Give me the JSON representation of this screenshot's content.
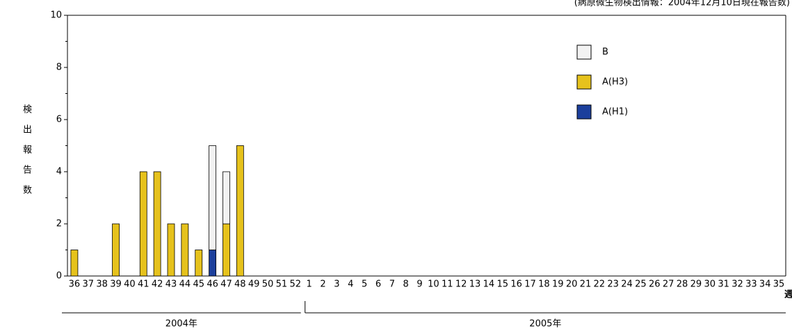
{
  "chart_data": {
    "type": "stacked_bar",
    "title": "(病原微生物検出情報：2004年12月10日現在報告数)",
    "y_label": "検出報告数",
    "x_label": "週",
    "x_groups": [
      "2004年",
      "2005年"
    ],
    "categories": [
      "36",
      "37",
      "38",
      "39",
      "40",
      "41",
      "42",
      "43",
      "44",
      "45",
      "46",
      "47",
      "48",
      "49",
      "50",
      "51",
      "52",
      "1",
      "2",
      "3",
      "4",
      "5",
      "6",
      "7",
      "8",
      "9",
      "10",
      "11",
      "12",
      "13",
      "14",
      "15",
      "16",
      "17",
      "18",
      "19",
      "20",
      "21",
      "22",
      "23",
      "24",
      "25",
      "26",
      "27",
      "28",
      "29",
      "30",
      "31",
      "32",
      "33",
      "34",
      "35"
    ],
    "series": [
      {
        "name": "A(H1)",
        "color": "#1c3f9c",
        "values": [
          0,
          0,
          0,
          0,
          0,
          0,
          0,
          0,
          0,
          0,
          1,
          0,
          0,
          0,
          0,
          0,
          0,
          0,
          0,
          0,
          0,
          0,
          0,
          0,
          0,
          0,
          0,
          0,
          0,
          0,
          0,
          0,
          0,
          0,
          0,
          0,
          0,
          0,
          0,
          0,
          0,
          0,
          0,
          0,
          0,
          0,
          0,
          0,
          0,
          0,
          0,
          0
        ]
      },
      {
        "name": "A(H3)",
        "color": "#e6c21c",
        "values": [
          1,
          0,
          0,
          2,
          0,
          4,
          4,
          2,
          2,
          1,
          0,
          2,
          5,
          0,
          0,
          0,
          0,
          0,
          0,
          0,
          0,
          0,
          0,
          0,
          0,
          0,
          0,
          0,
          0,
          0,
          0,
          0,
          0,
          0,
          0,
          0,
          0,
          0,
          0,
          0,
          0,
          0,
          0,
          0,
          0,
          0,
          0,
          0,
          0,
          0,
          0,
          0
        ]
      },
      {
        "name": "B",
        "color": "#f2f2f2",
        "values": [
          0,
          0,
          0,
          0,
          0,
          0,
          0,
          0,
          0,
          0,
          4,
          2,
          0,
          0,
          0,
          0,
          0,
          0,
          0,
          0,
          0,
          0,
          0,
          0,
          0,
          0,
          0,
          0,
          0,
          0,
          0,
          0,
          0,
          0,
          0,
          0,
          0,
          0,
          0,
          0,
          0,
          0,
          0,
          0,
          0,
          0,
          0,
          0,
          0,
          0,
          0,
          0
        ]
      }
    ],
    "ylim": [
      0,
      10
    ],
    "yticks": [
      0,
      2,
      4,
      6,
      8,
      10
    ]
  }
}
